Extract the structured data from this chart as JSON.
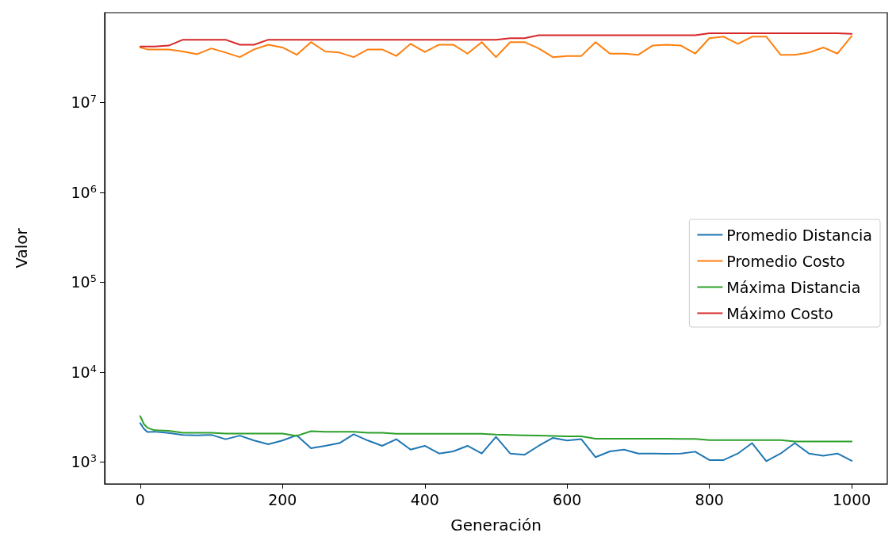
{
  "chart_data": {
    "type": "line",
    "xlabel": "Generación",
    "ylabel": "Valor",
    "log": true,
    "grid": false,
    "legend": "center right",
    "marker": "none",
    "line_style": "solid",
    "xlim": [
      -50,
      1050
    ],
    "xticks": [
      0,
      200,
      400,
      600,
      800,
      1000
    ],
    "ylim": [
      570,
      100000000
    ],
    "yticks": [
      {
        "value": 1000,
        "label": "10$^{3}$"
      },
      {
        "value": 10000,
        "label": "10$^{4}$"
      },
      {
        "value": 100000,
        "label": "10$^{5}$"
      },
      {
        "value": 1000000,
        "label": "10$^{6}$"
      },
      {
        "value": 10000000,
        "label": "10$^{7}$"
      }
    ],
    "x": [
      0,
      5,
      10,
      20,
      40,
      60,
      80,
      100,
      120,
      140,
      160,
      180,
      200,
      220,
      240,
      260,
      280,
      300,
      320,
      340,
      360,
      380,
      400,
      420,
      440,
      460,
      480,
      500,
      520,
      540,
      560,
      580,
      600,
      620,
      640,
      660,
      680,
      700,
      720,
      740,
      760,
      780,
      800,
      820,
      840,
      860,
      880,
      900,
      920,
      940,
      960,
      980,
      1000
    ],
    "series": [
      {
        "name": "Promedio Distancia",
        "color": "#1f77b4",
        "values": [
          2700,
          2350,
          2150,
          2170,
          2100,
          2000,
          1980,
          2000,
          1790,
          1960,
          1730,
          1570,
          1730,
          1980,
          1420,
          1510,
          1620,
          2030,
          1730,
          1510,
          1790,
          1370,
          1510,
          1240,
          1310,
          1510,
          1240,
          1900,
          1240,
          1200,
          1510,
          1850,
          1730,
          1790,
          1130,
          1310,
          1370,
          1240,
          1240,
          1230,
          1240,
          1300,
          1050,
          1050,
          1240,
          1620,
          1020,
          1240,
          1620,
          1240,
          1170,
          1240,
          1030
        ]
      },
      {
        "name": "Promedio Costo",
        "color": "#ff7f0e",
        "values": [
          41000000,
          40000000,
          39000000,
          39000000,
          39000000,
          37000000,
          34500000,
          40000000,
          36000000,
          32000000,
          39000000,
          44000000,
          41000000,
          34000000,
          47000000,
          37000000,
          36000000,
          32000000,
          39000000,
          39000000,
          33000000,
          45000000,
          36500000,
          44000000,
          44000000,
          35000000,
          47000000,
          32000000,
          47000000,
          47000000,
          40000000,
          32000000,
          33000000,
          33000000,
          47000000,
          35000000,
          35000000,
          34000000,
          43000000,
          44000000,
          43000000,
          35000000,
          52000000,
          54000000,
          45000000,
          54000000,
          54000000,
          34000000,
          34000000,
          36000000,
          41000000,
          35000000,
          55000000
        ]
      },
      {
        "name": "Máxima Distancia",
        "color": "#2ca02c",
        "values": [
          3230,
          2650,
          2400,
          2250,
          2220,
          2110,
          2110,
          2110,
          2070,
          2070,
          2070,
          2070,
          2070,
          1950,
          2200,
          2160,
          2160,
          2160,
          2110,
          2110,
          2060,
          2060,
          2060,
          2060,
          2060,
          2060,
          2060,
          2020,
          2000,
          1980,
          1970,
          1950,
          1930,
          1930,
          1810,
          1810,
          1810,
          1810,
          1810,
          1810,
          1800,
          1800,
          1750,
          1750,
          1750,
          1750,
          1750,
          1750,
          1690,
          1690,
          1690,
          1690,
          1690
        ]
      },
      {
        "name": "Máximo Costo",
        "color": "#d62728",
        "values": [
          42000000,
          42000000,
          42000000,
          42000000,
          43000000,
          50000000,
          50000000,
          50000000,
          50000000,
          44000000,
          44000000,
          50000000,
          50000000,
          50000000,
          50000000,
          50000000,
          50000000,
          50000000,
          50000000,
          50000000,
          50000000,
          50000000,
          50000000,
          50000000,
          50000000,
          50000000,
          50000000,
          50000000,
          52000000,
          52000000,
          56000000,
          56000000,
          56000000,
          56000000,
          56000000,
          56000000,
          56000000,
          56000000,
          56000000,
          56000000,
          56000000,
          56000000,
          59000000,
          59000000,
          59000000,
          59000000,
          59000000,
          59000000,
          59000000,
          59000000,
          59000000,
          59000000,
          58000000
        ]
      }
    ]
  }
}
